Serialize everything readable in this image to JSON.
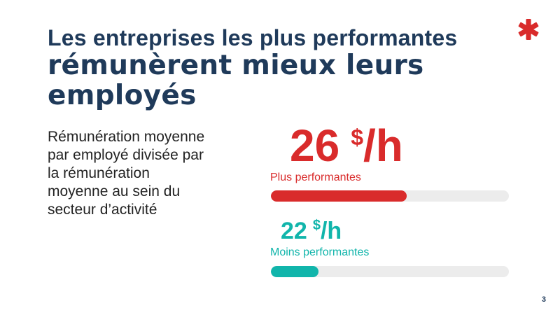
{
  "slide": {
    "title_line_1": "Les entreprises les plus performantes",
    "title_line_2": "rémunèrent mieux leurs employés",
    "description": "Rémunération moyenne\npar employé divisée par\nla rémunération\nmoyenne au sein du\nsecteur d’activité",
    "page_number": "3",
    "logo_icon": "red-asterisk-icon"
  },
  "stats": {
    "top": {
      "value": "26",
      "unit_currency": "$",
      "unit_rest": "/h",
      "label": "Plus performantes",
      "progress_fraction": 0.57,
      "color": "#d92b2b"
    },
    "bottom": {
      "value": "22",
      "unit_currency": "$",
      "unit_rest": "/h",
      "label": "Moins performantes",
      "progress_fraction": 0.2,
      "color": "#11b5ab"
    }
  },
  "colors": {
    "title": "#1f3a5a",
    "accent_red": "#d92b2b",
    "accent_teal": "#11b5ab",
    "bar_track": "#ececec"
  }
}
